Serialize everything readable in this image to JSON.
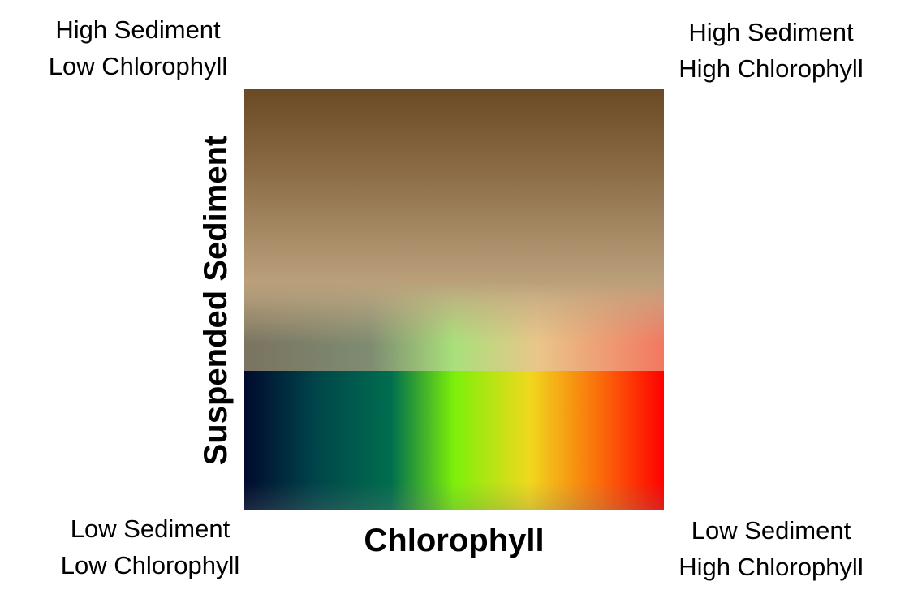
{
  "corners": {
    "top_left": [
      "High Sediment",
      "Low Chlorophyll"
    ],
    "top_right": [
      "High Sediment",
      "High Chlorophyll"
    ],
    "bottom_left": [
      "Low Sediment",
      "Low Chlorophyll"
    ],
    "bottom_right": [
      "Low Sediment",
      "High Chlorophyll"
    ]
  },
  "axes": {
    "x_label": "Chlorophyll",
    "y_label": "Suspended Sediment"
  },
  "colors": {
    "sediment_gradient": [
      "#6a4a25",
      "#8c6d48",
      "#aa8f6a",
      "#c2a882",
      "#caae88"
    ],
    "chlorophyll_gradient": [
      "#000a2e",
      "#00454a",
      "#006e4e",
      "#7cf00a",
      "#f0d81e",
      "#fb6a0a",
      "#ff0000"
    ],
    "transition_tint": [
      "#7a7360",
      "#7e8c72",
      "#a9e07a",
      "#e9c68a",
      "#f37760"
    ]
  }
}
